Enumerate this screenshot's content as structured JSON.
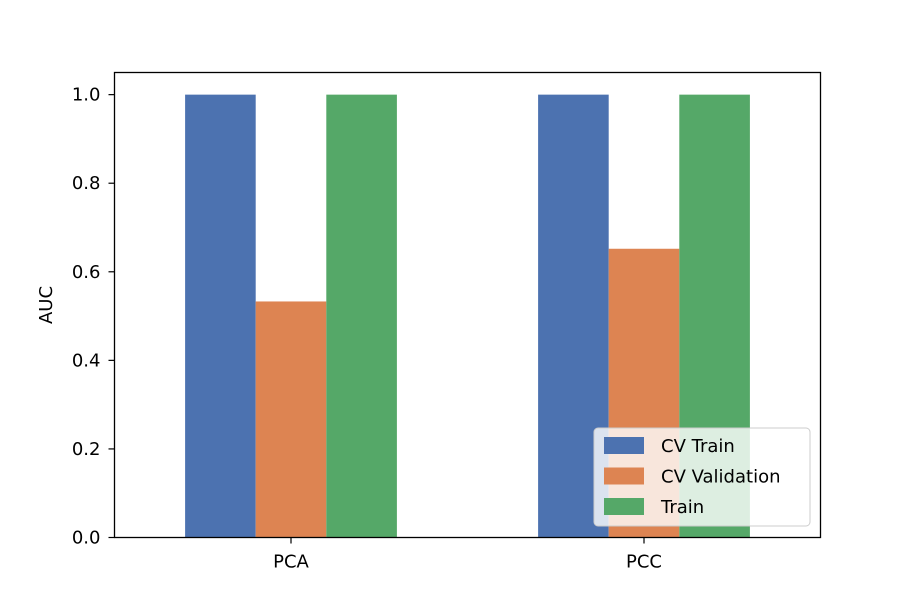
{
  "chart_data": {
    "type": "bar",
    "title": "",
    "xlabel": "",
    "ylabel": "AUC",
    "categories": [
      "PCA",
      "PCC"
    ],
    "series": [
      {
        "name": "CV Train",
        "color": "#4c72b0",
        "values": [
          1.0,
          1.0
        ]
      },
      {
        "name": "CV Validation",
        "color": "#dd8452",
        "values": [
          0.533,
          0.652
        ]
      },
      {
        "name": "Train",
        "color": "#55a868",
        "values": [
          1.0,
          1.0
        ]
      }
    ],
    "ylim": [
      0,
      1.05
    ],
    "yticks": [
      "0.0",
      "0.2",
      "0.4",
      "0.6",
      "0.8",
      "1.0"
    ],
    "grid": false,
    "legend_position": "lower-right"
  }
}
